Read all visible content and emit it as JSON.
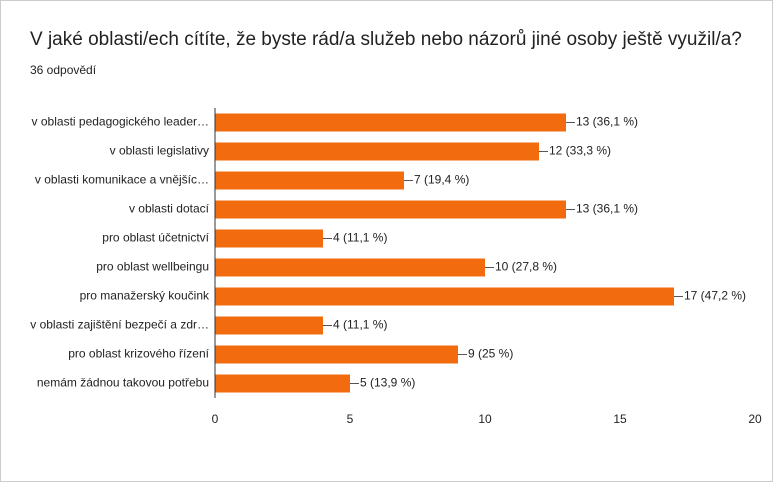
{
  "chart_data": {
    "type": "bar",
    "orientation": "horizontal",
    "title": "V jaké oblasti/ech cítíte, že byste rád/a služeb nebo názorů jiné osoby ještě využil/a?",
    "subtitle": "36 odpovědí",
    "categories": [
      "v oblasti pedagogického leader…",
      "v oblasti legislativy",
      "v oblasti komunikace a vnějšíc…",
      "v oblasti dotací",
      "pro oblast účetnictví",
      "pro oblast wellbeingu",
      "pro manažerský koučink",
      "v oblasti zajištění bezpečí a zdr…",
      "pro oblast krizového řízení",
      "nemám žádnou takovou potřebu"
    ],
    "values": [
      13,
      12,
      7,
      13,
      4,
      10,
      17,
      4,
      9,
      5
    ],
    "value_labels": [
      "13 (36,1 %)",
      "12 (33,3 %)",
      "7 (19,4 %)",
      "13 (36,1 %)",
      "4 (11,1 %)",
      "10 (27,8 %)",
      "17 (47,2 %)",
      "4 (11,1 %)",
      "9 (25 %)",
      "5 (13,9 %)"
    ],
    "color": "#f26b0f",
    "xlim": [
      0,
      20
    ],
    "xticks": [
      0,
      5,
      10,
      15,
      20
    ],
    "grid": false
  }
}
